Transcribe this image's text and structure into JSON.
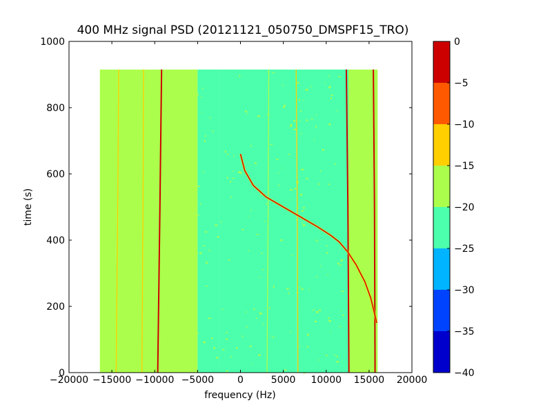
{
  "chart_data": {
    "type": "heatmap",
    "title": "400 MHz signal PSD (20121121_050750_DMSPF15_TRO)",
    "xlabel": "frequency (Hz)",
    "ylabel": "time (s)",
    "xlim": [
      -20000,
      20000
    ],
    "ylim": [
      0,
      1000
    ],
    "xticks": [
      -20000,
      -15000,
      -10000,
      -5000,
      0,
      5000,
      10000,
      15000,
      20000
    ],
    "xtick_labels": [
      "−20000",
      "−15000",
      "−10000",
      "−5000",
      "0",
      "5000",
      "10000",
      "15000",
      "20000"
    ],
    "yticks": [
      0,
      200,
      400,
      600,
      800,
      1000
    ],
    "ytick_labels": [
      "0",
      "200",
      "400",
      "600",
      "800",
      "1000"
    ],
    "data_extent": {
      "x": [
        -16400,
        16000
      ],
      "y": [
        0,
        915
      ]
    },
    "colorbar": {
      "levels": [
        -40,
        -35,
        -30,
        -25,
        -20,
        -15,
        -10,
        -5,
        0
      ],
      "tick_labels": [
        "−40",
        "−35",
        "−30",
        "−25",
        "−20",
        "−15",
        "−10",
        "−5",
        "0"
      ],
      "colors": [
        "#0000cd",
        "#0043ff",
        "#00b4ff",
        "#4cffac",
        "#abff4c",
        "#ffcf00",
        "#ff5900",
        "#cd0000"
      ]
    },
    "background_bands": [
      {
        "x": [
          -16400,
          -5000
        ],
        "level": -17.5
      },
      {
        "x": [
          -5000,
          -2500
        ],
        "level": -20
      },
      {
        "x": [
          -2500,
          6500
        ],
        "level": -22.5
      },
      {
        "x": [
          6500,
          12600
        ],
        "level": -22.5
      },
      {
        "x": [
          12600,
          16000
        ],
        "level": -17.5
      }
    ],
    "vertical_lines": [
      {
        "x0": -14500,
        "x1": -14200,
        "level": -12.5
      },
      {
        "x0": -11500,
        "x1": -11300,
        "level": -12.5
      },
      {
        "x0": -9650,
        "x1": -9200,
        "level": -2.5
      },
      {
        "x0": -5600,
        "x1": -5400,
        "level": -17.5
      },
      {
        "x0": 3100,
        "x1": 3300,
        "level": -17.5
      },
      {
        "x0": 6700,
        "x1": 6500,
        "level": -12.5
      },
      {
        "x0": 12650,
        "x1": 12350,
        "level": -2.5
      },
      {
        "x0": 15700,
        "x1": 15500,
        "level": -2.5
      }
    ],
    "sweep_series": {
      "name": "",
      "x": [
        0,
        500,
        1500,
        3000,
        5000,
        7000,
        9000,
        10500,
        11500,
        12500,
        13500,
        14500,
        15200,
        15900
      ],
      "y": [
        660,
        610,
        565,
        530,
        500,
        470,
        440,
        415,
        395,
        365,
        325,
        275,
        225,
        150
      ],
      "level": -2.5
    }
  }
}
